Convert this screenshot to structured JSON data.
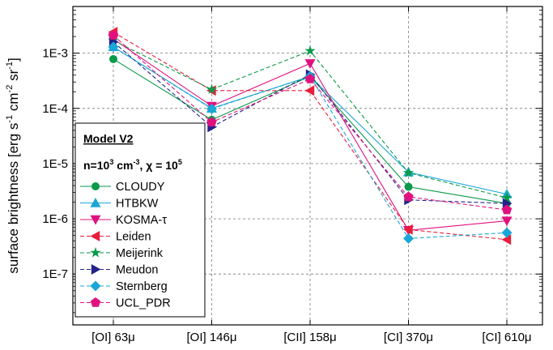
{
  "chart_data": {
    "type": "line",
    "categories": [
      "[OI] 63μ",
      "[OI] 146μ",
      "[CII] 158μ",
      "[CI] 370μ",
      "[CI] 610μ"
    ],
    "ylabel": "surface brightness [erg s⁻¹ cm⁻² sr⁻¹]",
    "ylabel_parts": {
      "base": "surface brightness [erg s",
      "e1": "-1",
      "mid1": " cm",
      "e2": "-2",
      "mid2": " sr",
      "e3": "-1",
      "end": "]"
    },
    "yscale": "log",
    "ylim": [
      1.2e-08,
      0.007
    ],
    "yticks": [
      1e-07,
      1e-06,
      1e-05,
      0.0001,
      0.001
    ],
    "ytick_labels": [
      "1E-7",
      "1E-6",
      "1E-5",
      "1E-4",
      "1E-3"
    ],
    "grid": true,
    "legend": {
      "placement": "left",
      "title_line1": "Model V2",
      "title_line2": {
        "a": "n=10",
        "a_sup": "3",
        "b": " cm",
        "b_sup": "-3",
        "c": ", χ = 10",
        "c_sup": "5"
      }
    },
    "series": [
      {
        "name": "CLOUDY",
        "color": "#0a9a4a",
        "dash": "solid",
        "marker": "circle",
        "values": [
          0.00078,
          6.2e-05,
          0.00038,
          3.8e-06,
          1.9e-06
        ]
      },
      {
        "name": "HTBKW",
        "color": "#1aa6d6",
        "dash": "solid",
        "marker": "triangle-up",
        "values": [
          0.0013,
          0.0001,
          0.00038,
          7e-06,
          2.8e-06
        ]
      },
      {
        "name": "KOSMA-τ",
        "color": "#e0117f",
        "dash": "solid",
        "marker": "triangle-down",
        "values": [
          0.0018,
          0.00011,
          0.00065,
          6.2e-07,
          9.2e-07
        ]
      },
      {
        "name": "Leiden",
        "color": "#e81e3c",
        "dash": "dashed",
        "marker": "triangle-left",
        "values": [
          0.0024,
          0.00021,
          0.00021,
          6.4e-07,
          4.2e-07
        ]
      },
      {
        "name": "Meijerink",
        "color": "#0a9a4a",
        "dash": "dashed",
        "marker": "star",
        "values": [
          0.0017,
          0.00022,
          0.0011,
          6.8e-06,
          2.4e-06
        ]
      },
      {
        "name": "Meudon",
        "color": "#23238a",
        "dash": "dashed",
        "marker": "triangle-right",
        "values": [
          0.0016,
          4.6e-05,
          0.00041,
          2.2e-06,
          1.9e-06
        ]
      },
      {
        "name": "Sternberg",
        "color": "#1aa6d6",
        "dash": "dashed",
        "marker": "diamond",
        "values": [
          0.0013,
          9.8e-05,
          0.00038,
          4.4e-07,
          5.6e-07
        ]
      },
      {
        "name": "UCL_PDR",
        "color": "#e0117f",
        "dash": "dashed",
        "marker": "pentagon",
        "values": [
          0.0021,
          5.6e-05,
          0.00034,
          2.5e-06,
          1.45e-06
        ]
      }
    ]
  }
}
